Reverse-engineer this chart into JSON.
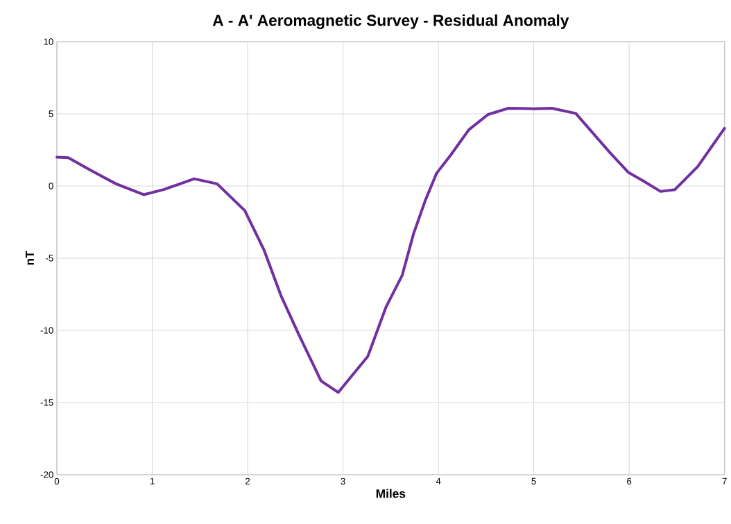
{
  "chart_data": {
    "type": "line",
    "title": "A - A' Aeromagnetic Survey - Residual Anomaly",
    "xlabel": "Miles",
    "ylabel": "nT",
    "x": [
      0,
      0.12,
      0.35,
      0.62,
      0.91,
      1.12,
      1.44,
      1.68,
      1.97,
      2.17,
      2.35,
      2.53,
      2.77,
      2.95,
      3.26,
      3.45,
      3.62,
      3.74,
      3.86,
      3.98,
      4.13,
      4.32,
      4.52,
      4.73,
      5.0,
      5.19,
      5.44,
      5.8,
      5.99,
      6.14,
      6.33,
      6.48,
      6.72,
      7.0
    ],
    "series": [
      {
        "color": "#7030a0",
        "values": [
          2.0,
          1.96,
          1.1,
          0.15,
          -0.6,
          -0.25,
          0.5,
          0.15,
          -1.7,
          -4.4,
          -7.6,
          -10.2,
          -13.5,
          -14.3,
          -11.8,
          -8.4,
          -6.2,
          -3.3,
          -1.05,
          0.87,
          2.15,
          3.9,
          4.95,
          5.38,
          5.35,
          5.38,
          5.03,
          2.3,
          0.95,
          0.38,
          -0.38,
          -0.25,
          1.35,
          4.0
        ]
      }
    ],
    "xlim": [
      0,
      7
    ],
    "ylim": [
      -20,
      10
    ],
    "xticks": [
      0,
      1,
      2,
      3,
      4,
      5,
      6,
      7
    ],
    "yticks": [
      -20,
      -15,
      -10,
      -5,
      0,
      5,
      10
    ],
    "grid": true
  }
}
